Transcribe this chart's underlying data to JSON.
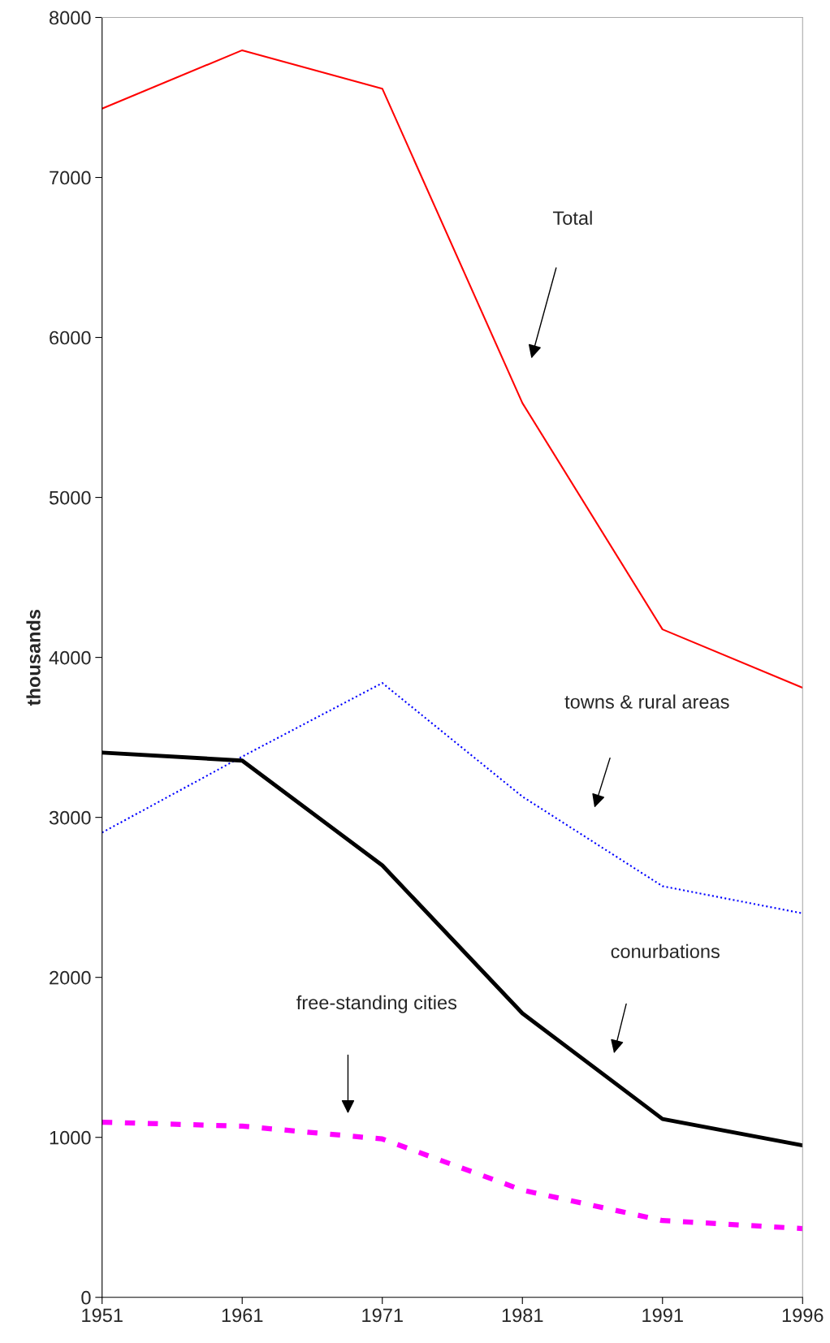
{
  "chart_data": {
    "type": "line",
    "ylabel": "thousands",
    "categories": [
      "1951",
      "1961",
      "1971",
      "1981",
      "1991",
      "1996"
    ],
    "ylim": [
      0,
      8000
    ],
    "yticks": [
      0,
      1000,
      2000,
      3000,
      4000,
      5000,
      6000,
      7000,
      8000
    ],
    "grid": false,
    "legend": false,
    "annotations": [
      "Total",
      "towns & rural areas",
      "conurbations",
      "free-standing cities"
    ],
    "series": [
      {
        "color": "#ff0000",
        "line_style": "solid",
        "values": [
          7430,
          7795,
          7555,
          5590,
          4175,
          3810
        ]
      },
      {
        "color": "#0000ff",
        "line_style": "dotted",
        "values": [
          2905,
          3380,
          3840,
          3130,
          2570,
          2400
        ]
      },
      {
        "color": "#000000",
        "line_style": "solid",
        "values": [
          3405,
          3355,
          2700,
          1775,
          1115,
          950
        ]
      },
      {
        "color": "#ff00ff",
        "line_style": "dashed",
        "values": [
          1095,
          1070,
          990,
          670,
          480,
          430
        ]
      }
    ]
  }
}
